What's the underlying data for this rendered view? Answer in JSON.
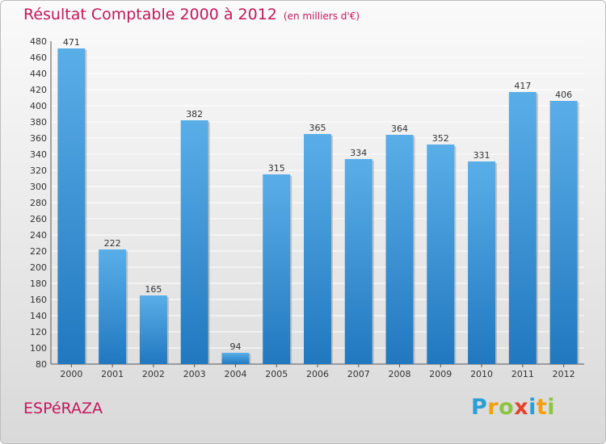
{
  "header": {
    "title": "Résultat Comptable 2000 à 2012",
    "subtitle": "(en milliers d'€)"
  },
  "footer": {
    "commune": "ESPéRAZA",
    "logo_letters": [
      "P",
      "r",
      "o",
      "x",
      "i",
      "t",
      "i"
    ]
  },
  "colors": {
    "bar_light": "#5aaee8",
    "bar_dark": "#2178bf",
    "title": "#c2185b"
  },
  "chart_data": {
    "type": "bar",
    "title": "Résultat Comptable 2000 à 2012",
    "ylabel": "en milliers d'€",
    "xlabel": "",
    "categories": [
      "2000",
      "2001",
      "2002",
      "2003",
      "2004",
      "2005",
      "2006",
      "2007",
      "2008",
      "2009",
      "2010",
      "2011",
      "2012"
    ],
    "values": [
      471,
      222,
      165,
      382,
      94,
      315,
      365,
      334,
      364,
      352,
      331,
      417,
      406
    ],
    "ylim": [
      80,
      480
    ],
    "ytick_step": 20,
    "grid": true
  }
}
